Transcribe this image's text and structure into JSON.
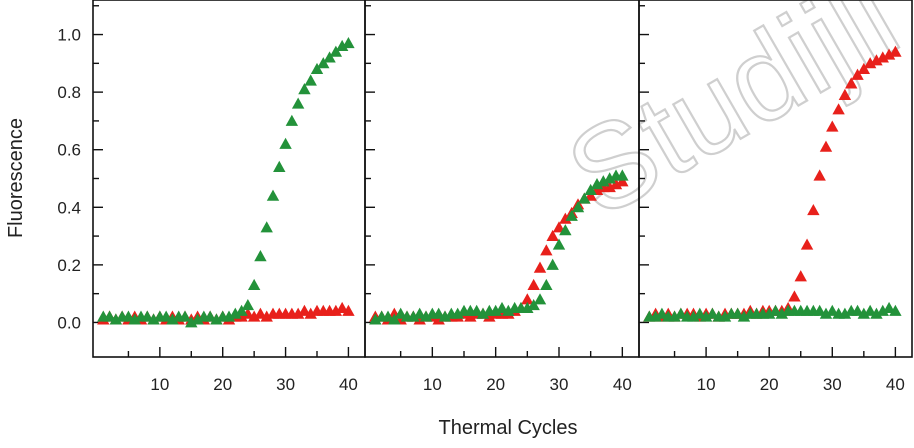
{
  "watermark": "Studijli",
  "chart_data": [
    {
      "type": "scatter",
      "xlabel": "",
      "ylabel": "Fluorescence",
      "xlim": [
        0,
        42
      ],
      "ylim": [
        -0.12,
        1.12
      ],
      "xticks": [
        "10",
        "20",
        "30",
        "40"
      ],
      "yticks": [
        "0.0",
        "0.2",
        "0.4",
        "0.6",
        "0.8",
        "1.0"
      ],
      "series": [
        {
          "color": "#e8201b",
          "x": [
            1,
            2,
            3,
            4,
            5,
            6,
            7,
            8,
            9,
            10,
            11,
            12,
            13,
            14,
            15,
            16,
            17,
            18,
            19,
            20,
            21,
            22,
            23,
            24,
            25,
            26,
            27,
            28,
            29,
            30,
            31,
            32,
            33,
            34,
            35,
            36,
            37,
            38,
            39,
            40
          ],
          "y": [
            0.01,
            0.02,
            0.01,
            0.02,
            0.01,
            0.02,
            0.01,
            0.02,
            0.01,
            0.02,
            0.01,
            0.02,
            0.01,
            0.02,
            0.01,
            0.02,
            0.01,
            0.02,
            0.01,
            0.02,
            0.01,
            0.02,
            0.02,
            0.03,
            0.02,
            0.03,
            0.02,
            0.03,
            0.03,
            0.03,
            0.03,
            0.03,
            0.04,
            0.03,
            0.04,
            0.04,
            0.04,
            0.04,
            0.05,
            0.04
          ]
        },
        {
          "color": "#23923a",
          "x": [
            1,
            2,
            3,
            4,
            5,
            6,
            7,
            8,
            9,
            10,
            11,
            12,
            13,
            14,
            15,
            16,
            17,
            18,
            19,
            20,
            21,
            22,
            23,
            24,
            25,
            26,
            27,
            28,
            29,
            30,
            31,
            32,
            33,
            34,
            35,
            36,
            37,
            38,
            39,
            40
          ],
          "y": [
            0.02,
            0.02,
            0.01,
            0.02,
            0.02,
            0.01,
            0.02,
            0.02,
            0.01,
            0.02,
            0.02,
            0.01,
            0.02,
            0.02,
            0.0,
            0.01,
            0.02,
            0.02,
            0.01,
            0.02,
            0.02,
            0.03,
            0.04,
            0.06,
            0.13,
            0.23,
            0.33,
            0.44,
            0.54,
            0.62,
            0.7,
            0.76,
            0.81,
            0.84,
            0.88,
            0.9,
            0.92,
            0.94,
            0.96,
            0.97
          ]
        }
      ]
    },
    {
      "type": "scatter",
      "xlabel": "Thermal Cycles",
      "ylabel": "",
      "xlim": [
        0,
        42
      ],
      "ylim": [
        -0.12,
        1.12
      ],
      "xticks": [
        "10",
        "20",
        "30",
        "40"
      ],
      "yticks": [],
      "series": [
        {
          "color": "#e8201b",
          "x": [
            1,
            2,
            3,
            4,
            5,
            6,
            7,
            8,
            9,
            10,
            11,
            12,
            13,
            14,
            15,
            16,
            17,
            18,
            19,
            20,
            21,
            22,
            23,
            24,
            25,
            26,
            27,
            28,
            29,
            30,
            31,
            32,
            33,
            34,
            35,
            36,
            37,
            38,
            39,
            40
          ],
          "y": [
            0.02,
            0.02,
            0.01,
            0.03,
            0.01,
            0.02,
            0.02,
            0.01,
            0.02,
            0.02,
            0.01,
            0.02,
            0.02,
            0.02,
            0.03,
            0.02,
            0.03,
            0.03,
            0.02,
            0.03,
            0.03,
            0.03,
            0.04,
            0.05,
            0.08,
            0.13,
            0.19,
            0.25,
            0.3,
            0.33,
            0.36,
            0.38,
            0.41,
            0.43,
            0.44,
            0.46,
            0.47,
            0.47,
            0.48,
            0.49
          ]
        },
        {
          "color": "#23923a",
          "x": [
            1,
            2,
            3,
            4,
            5,
            6,
            7,
            8,
            9,
            10,
            11,
            12,
            13,
            14,
            15,
            16,
            17,
            18,
            19,
            20,
            21,
            22,
            23,
            24,
            25,
            26,
            27,
            28,
            29,
            30,
            31,
            32,
            33,
            34,
            35,
            36,
            37,
            38,
            39,
            40
          ],
          "y": [
            0.01,
            0.02,
            0.02,
            0.01,
            0.03,
            0.02,
            0.02,
            0.03,
            0.02,
            0.03,
            0.03,
            0.02,
            0.03,
            0.03,
            0.04,
            0.04,
            0.04,
            0.03,
            0.04,
            0.04,
            0.05,
            0.04,
            0.05,
            0.05,
            0.05,
            0.06,
            0.08,
            0.13,
            0.2,
            0.27,
            0.32,
            0.37,
            0.4,
            0.43,
            0.46,
            0.48,
            0.49,
            0.5,
            0.51,
            0.51
          ]
        }
      ]
    },
    {
      "type": "scatter",
      "xlabel": "",
      "ylabel": "",
      "xlim": [
        0,
        42
      ],
      "ylim": [
        -0.12,
        1.12
      ],
      "xticks": [
        "10",
        "20",
        "30",
        "40"
      ],
      "yticks": [],
      "series": [
        {
          "color": "#e8201b",
          "x": [
            1,
            2,
            3,
            4,
            5,
            6,
            7,
            8,
            9,
            10,
            11,
            12,
            13,
            14,
            15,
            16,
            17,
            18,
            19,
            20,
            21,
            22,
            23,
            24,
            25,
            26,
            27,
            28,
            29,
            30,
            31,
            32,
            33,
            34,
            35,
            36,
            37,
            38,
            39,
            40
          ],
          "y": [
            0.02,
            0.03,
            0.02,
            0.03,
            0.02,
            0.03,
            0.03,
            0.03,
            0.02,
            0.03,
            0.03,
            0.02,
            0.03,
            0.03,
            0.03,
            0.03,
            0.04,
            0.03,
            0.04,
            0.04,
            0.04,
            0.04,
            0.05,
            0.09,
            0.16,
            0.27,
            0.39,
            0.51,
            0.61,
            0.68,
            0.74,
            0.79,
            0.83,
            0.86,
            0.88,
            0.9,
            0.91,
            0.92,
            0.93,
            0.94
          ]
        },
        {
          "color": "#23923a",
          "x": [
            1,
            2,
            3,
            4,
            5,
            6,
            7,
            8,
            9,
            10,
            11,
            12,
            13,
            14,
            15,
            16,
            17,
            18,
            19,
            20,
            21,
            22,
            23,
            24,
            25,
            26,
            27,
            28,
            29,
            30,
            31,
            32,
            33,
            34,
            35,
            36,
            37,
            38,
            39,
            40
          ],
          "y": [
            0.02,
            0.02,
            0.03,
            0.02,
            0.02,
            0.03,
            0.02,
            0.02,
            0.03,
            0.02,
            0.03,
            0.02,
            0.02,
            0.03,
            0.03,
            0.02,
            0.03,
            0.03,
            0.03,
            0.03,
            0.04,
            0.03,
            0.04,
            0.04,
            0.04,
            0.04,
            0.04,
            0.04,
            0.03,
            0.04,
            0.03,
            0.03,
            0.04,
            0.04,
            0.03,
            0.04,
            0.03,
            0.04,
            0.05,
            0.04
          ]
        }
      ]
    }
  ]
}
